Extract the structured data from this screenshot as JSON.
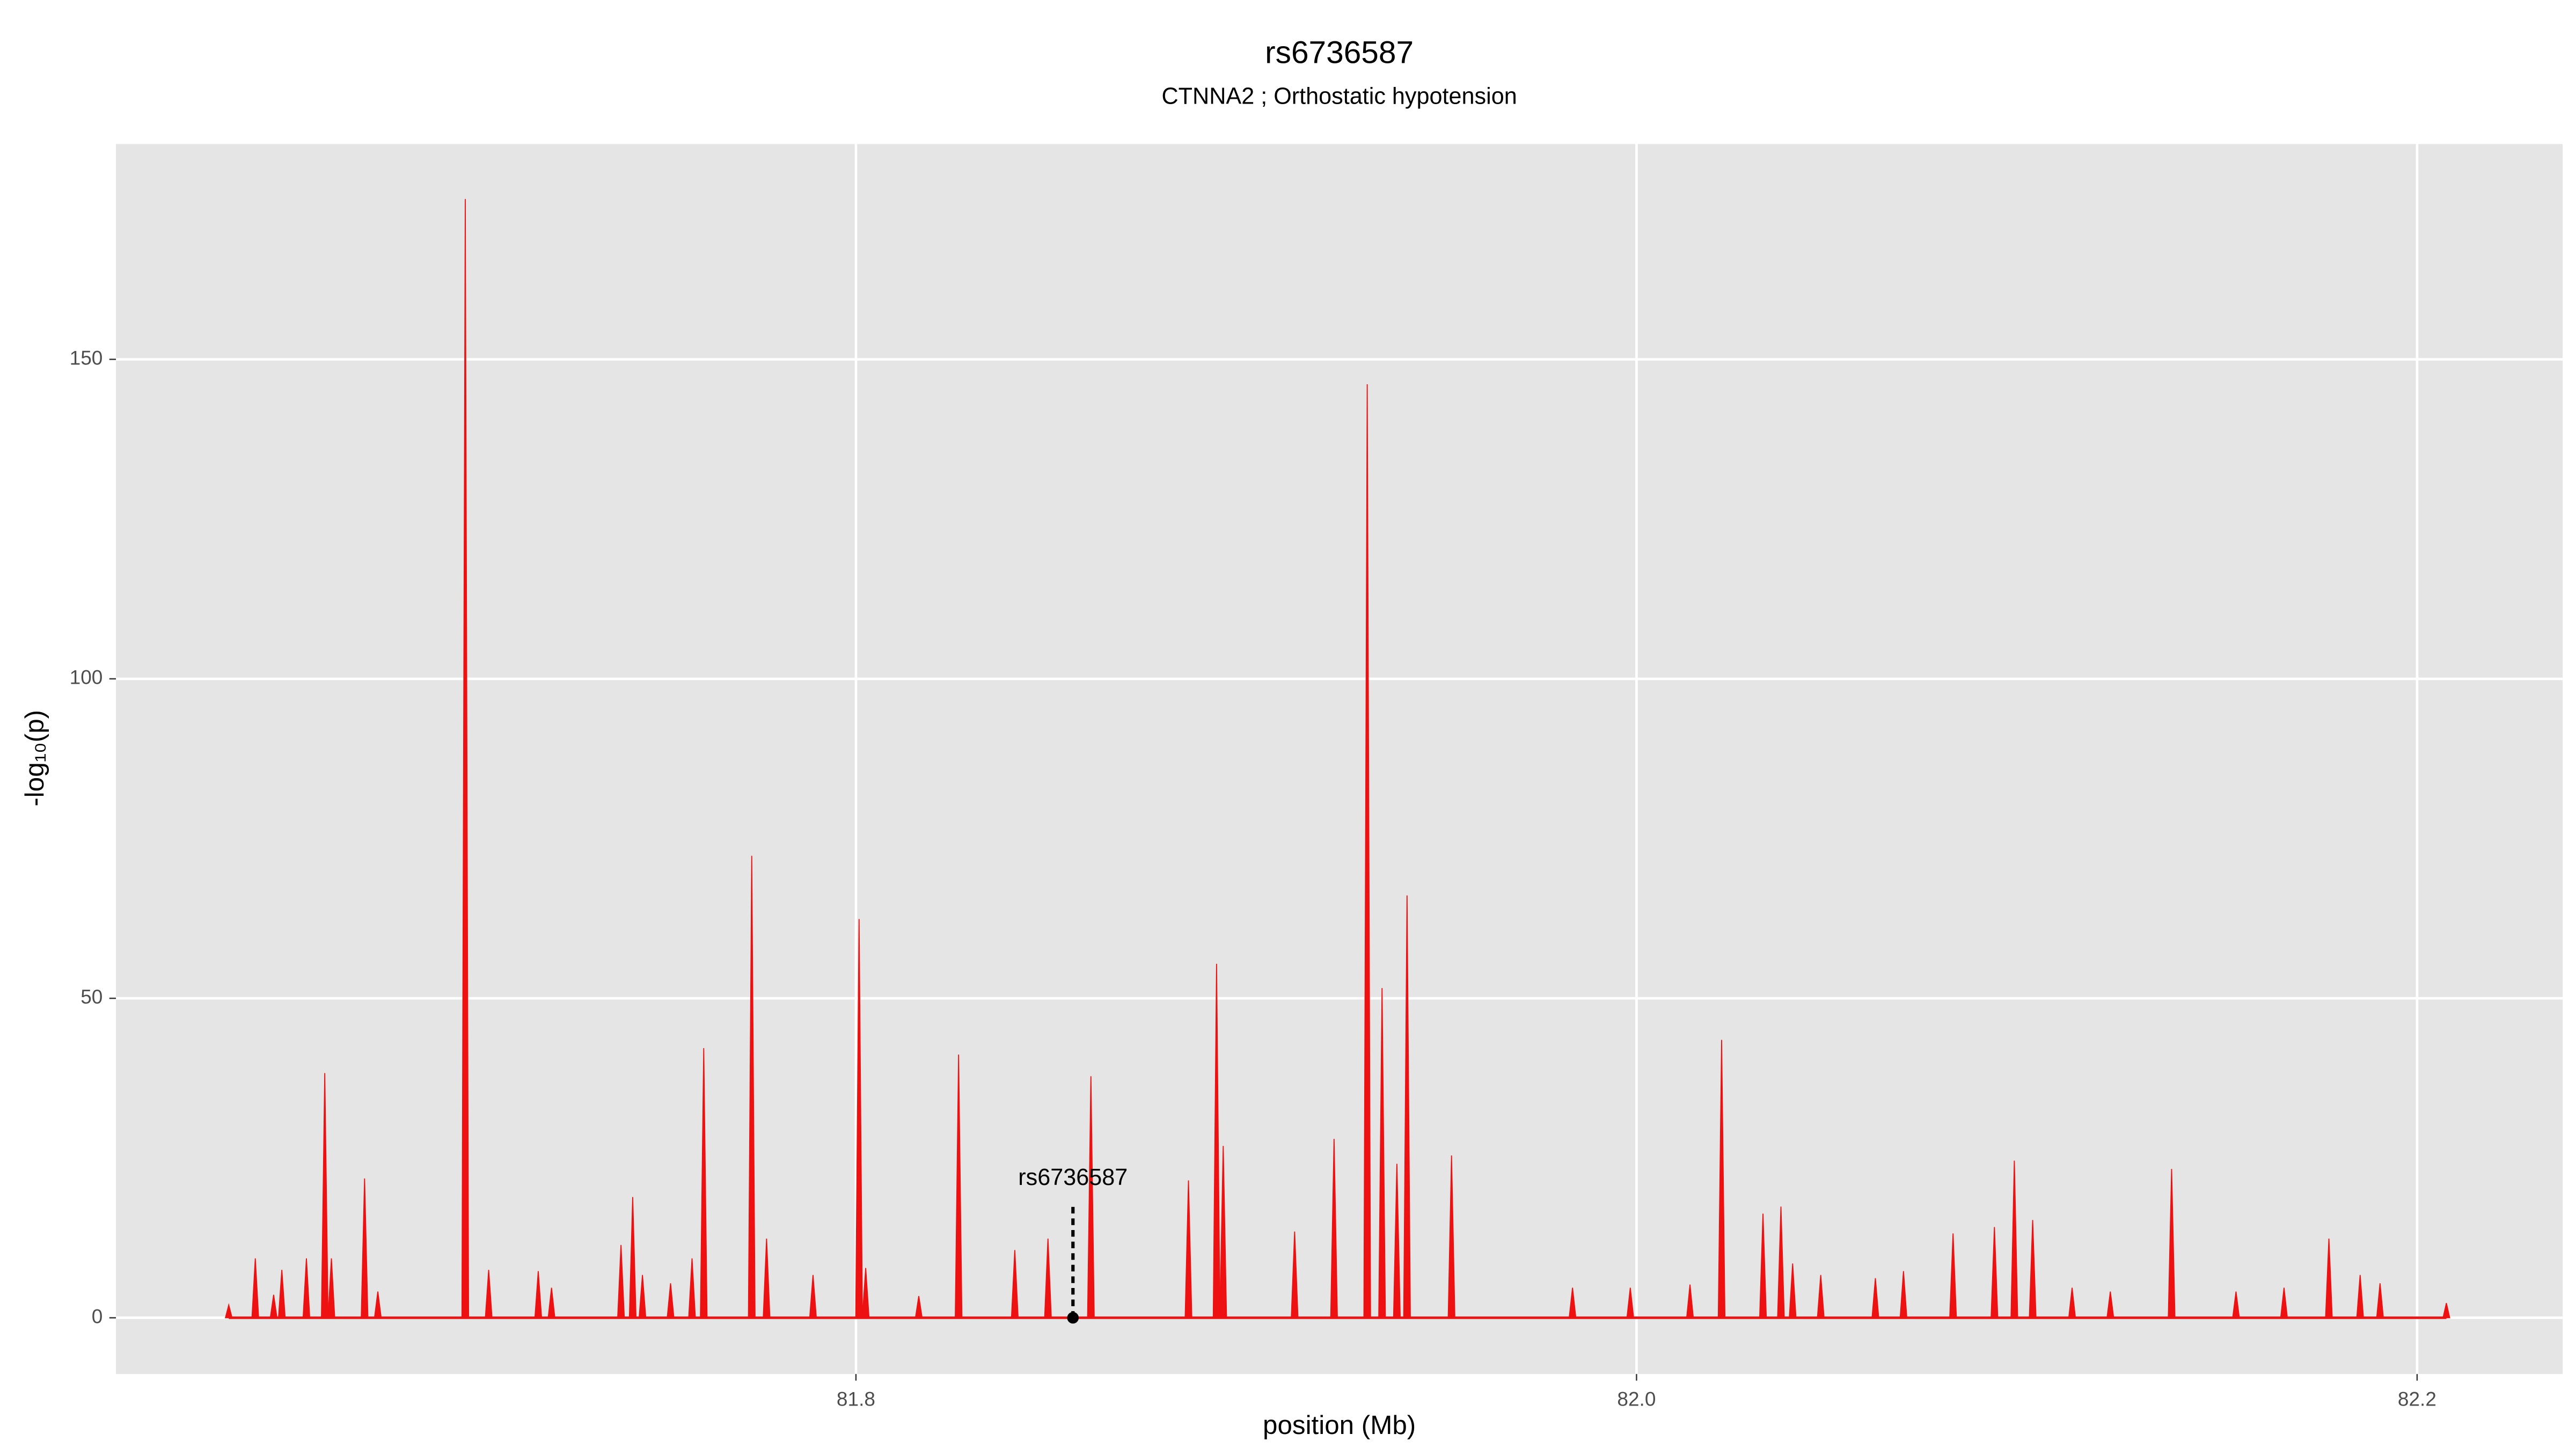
{
  "chart_data": {
    "type": "line",
    "title": "rs6736587",
    "subtitle": "CTNNA2 ; Orthostatic hypotension",
    "x_label": "position (Mb)",
    "y_label": "-log₁₀(p)",
    "color": "#ee1111",
    "x": [
      81.6393,
      81.6461,
      81.6508,
      81.6529,
      81.6592,
      81.6639,
      81.6656,
      81.6741,
      81.6775,
      81.6999,
      81.7059,
      81.7186,
      81.722,
      81.7398,
      81.7428,
      81.7453,
      81.7525,
      81.758,
      81.761,
      81.7733,
      81.7771,
      81.789,
      81.8008,
      81.8025,
      81.8161,
      81.8263,
      81.8407,
      81.8492,
      81.8602,
      81.8852,
      81.8924,
      81.8941,
      81.9124,
      81.9225,
      81.931,
      81.9348,
      81.9386,
      81.9412,
      81.9526,
      81.9836,
      81.9984,
      82.0137,
      82.0218,
      82.0324,
      82.037,
      82.04,
      82.0472,
      82.0612,
      82.0684,
      82.0811,
      82.0917,
      82.0968,
      82.1015,
      82.1116,
      82.1214,
      82.1371,
      82.1536,
      82.1659,
      82.1774,
      82.1854,
      82.1905,
      82.2075
    ],
    "values": [
      2,
      9.3,
      3.6,
      7.5,
      9.3,
      38.3,
      9.3,
      21.8,
      4.1,
      175.1,
      7.5,
      7.3,
      4.7,
      11.4,
      18.9,
      6.7,
      5.4,
      9.3,
      42.2,
      72.3,
      12.4,
      6.7,
      62.4,
      7.8,
      3.4,
      41.2,
      10.6,
      12.4,
      37.8,
      21.5,
      55.4,
      26.9,
      13.5,
      28,
      146.1,
      51.6,
      24.1,
      66.1,
      25.4,
      4.7,
      4.7,
      5.2,
      43.5,
      16.3,
      17.4,
      8.5,
      6.7,
      6.2,
      7.3,
      13.2,
      14.2,
      24.6,
      15.3,
      4.7,
      4.1,
      23.3,
      4.1,
      4.7,
      12.4,
      6.7,
      5.4,
      2.3
    ],
    "annotation": {
      "label": "rs6736587",
      "x": 81.8556,
      "y": 0
    },
    "xlim": [
      81.6104,
      82.2373
    ],
    "ylim": [
      -8.8,
      183.7
    ],
    "xticks": [
      81.8,
      {
        "value": 82,
        "label": "82.0"
      },
      82.2
    ],
    "yticks": [
      0,
      50,
      100,
      150
    ],
    "grid": true
  }
}
